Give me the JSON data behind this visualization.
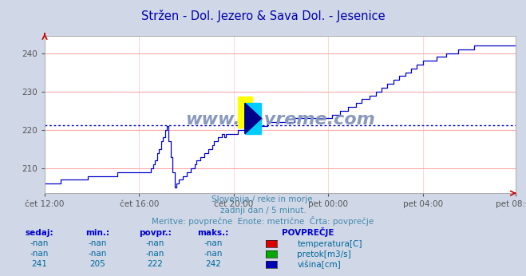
{
  "title": "Stržen - Dol. Jezero & Sava Dol. - Jesenice",
  "title_color": "#0000aa",
  "bg_color": "#d0d8e8",
  "plot_bg_color": "#ffffff",
  "grid_color_h": "#ffaaaa",
  "grid_color_v": "#ddaaaa",
  "line_color": "#0000cc",
  "avg_value": 221.3,
  "ylim": [
    203.5,
    244.5
  ],
  "yticks": [
    210,
    220,
    230,
    240
  ],
  "xtick_labels": [
    "čet 12:00",
    "čet 16:00",
    "čet 20:00",
    "pet 00:00",
    "pet 04:00",
    "pet 08:00"
  ],
  "subtitle_lines": [
    "Slovenija / reke in morje.",
    "zadnji dan / 5 minut.",
    "Meritve: povprečne  Enote: metrične  Črta: povprečje"
  ],
  "subtitle_color": "#4488aa",
  "table_header_color": "#0000cc",
  "table_value_color": "#006699",
  "legend_items": [
    {
      "label": "temperatura[C]",
      "color": "#dd0000"
    },
    {
      "label": "pretok[m3/s]",
      "color": "#00aa00"
    },
    {
      "label": "višina[cm]",
      "color": "#0000bb"
    }
  ],
  "watermark": "www.si-vreme.com",
  "watermark_color": "#8899bb",
  "n_points": 240,
  "logo_yellow": "#ffff00",
  "logo_cyan": "#00ccff",
  "logo_blue": "#000088"
}
